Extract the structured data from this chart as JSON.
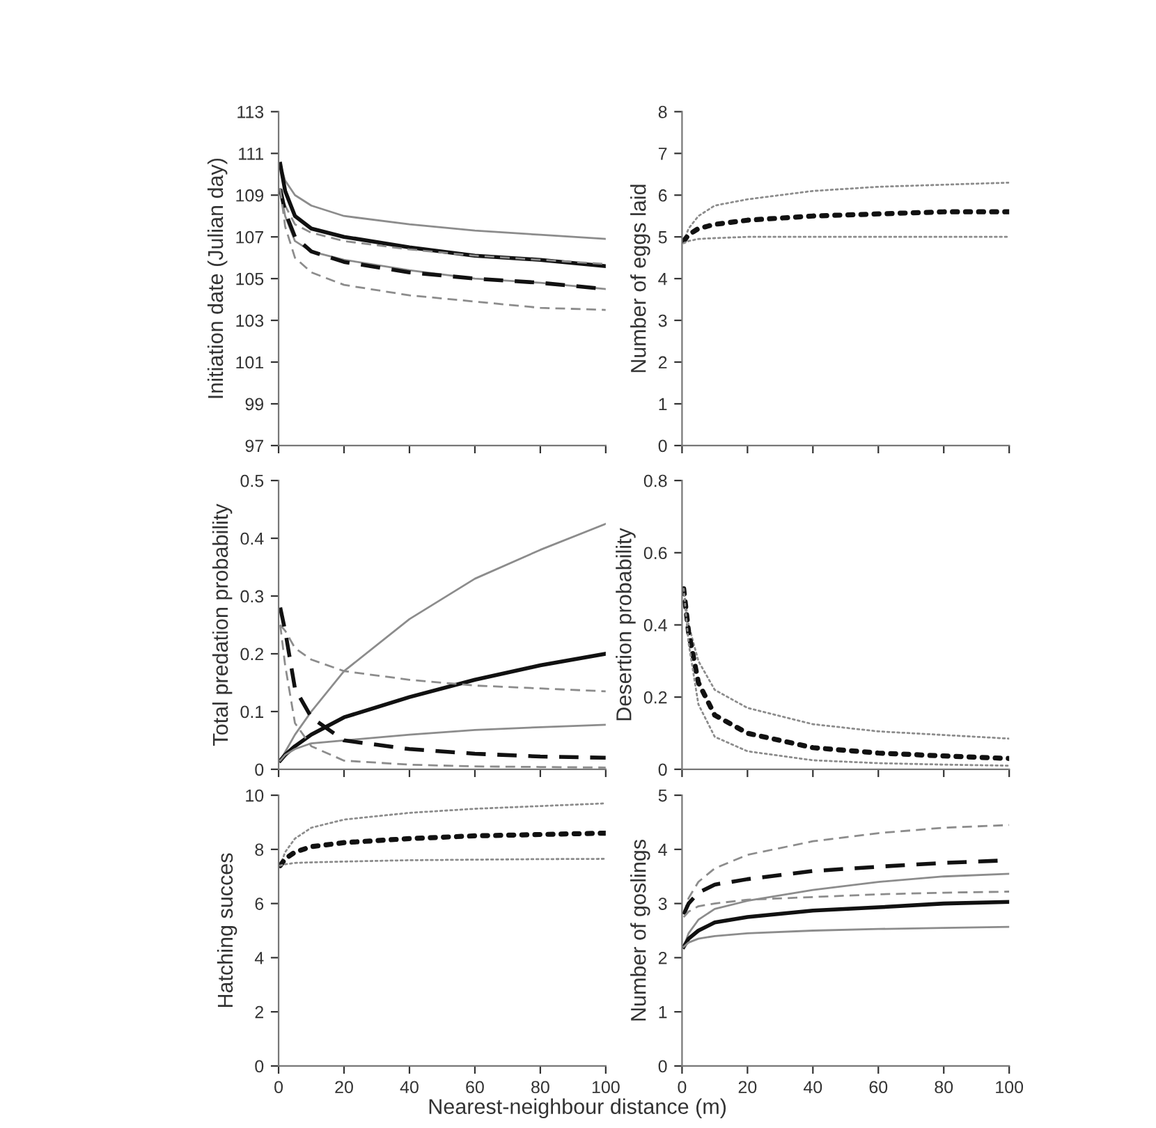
{
  "chart_data": [
    {
      "type": "line",
      "ylabel": "Initiation date (Julian day)",
      "xlim": [
        0,
        100
      ],
      "xticks": [
        0,
        20,
        40,
        60,
        80,
        100
      ],
      "ylim": [
        97,
        113
      ],
      "yticks": [
        97,
        99,
        101,
        103,
        105,
        107,
        109,
        111,
        113
      ],
      "tick_labels": "y",
      "grid": false,
      "legend": false,
      "x": [
        0.5,
        2,
        5,
        10,
        20,
        40,
        60,
        80,
        100
      ],
      "series": [
        {
          "color": "#8c8c8c",
          "line_style": "solid",
          "values": [
            110.5,
            109.7,
            109.0,
            108.5,
            108.0,
            107.6,
            107.3,
            107.1,
            106.9
          ]
        },
        {
          "color": "#111111",
          "line_style": "solid",
          "values": [
            110.5,
            109.2,
            108.0,
            107.4,
            107.0,
            106.5,
            106.1,
            105.9,
            105.6
          ]
        },
        {
          "color": "#8c8c8c",
          "line_style": "dashed",
          "values": [
            109.3,
            108.5,
            107.6,
            107.2,
            106.8,
            106.4,
            106.1,
            105.9,
            105.7
          ]
        },
        {
          "color": "#8c8c8c",
          "line_style": "solid",
          "values": [
            109.3,
            108.0,
            106.8,
            106.3,
            105.9,
            105.4,
            105.0,
            104.8,
            104.5
          ]
        },
        {
          "color": "#111111",
          "line_style": "dashed",
          "values": [
            109.3,
            108.2,
            107.0,
            106.3,
            105.8,
            105.3,
            105.0,
            104.8,
            104.5
          ]
        },
        {
          "color": "#8c8c8c",
          "line_style": "dashed",
          "values": [
            109.3,
            107.5,
            106.0,
            105.3,
            104.7,
            104.2,
            103.9,
            103.6,
            103.5
          ]
        }
      ]
    },
    {
      "type": "line",
      "ylabel": "Number of eggs laid",
      "xlim": [
        0,
        100
      ],
      "xticks": [
        0,
        20,
        40,
        60,
        80,
        100
      ],
      "ylim": [
        0,
        8
      ],
      "yticks": [
        0,
        1,
        2,
        3,
        4,
        5,
        6,
        7,
        8
      ],
      "tick_labels": "y",
      "grid": false,
      "legend": false,
      "x": [
        0.5,
        2,
        5,
        10,
        20,
        40,
        60,
        80,
        100
      ],
      "series": [
        {
          "color": "#8c8c8c",
          "line_style": "dotted",
          "values": [
            4.9,
            5.2,
            5.5,
            5.75,
            5.9,
            6.1,
            6.2,
            6.25,
            6.3
          ]
        },
        {
          "color": "#111111",
          "line_style": "dotted",
          "values": [
            4.9,
            5.05,
            5.2,
            5.3,
            5.4,
            5.5,
            5.55,
            5.6,
            5.6
          ]
        },
        {
          "color": "#8c8c8c",
          "line_style": "dotted",
          "values": [
            4.85,
            4.9,
            4.95,
            4.97,
            5.0,
            5.0,
            5.0,
            5.0,
            5.0
          ]
        }
      ]
    },
    {
      "type": "line",
      "ylabel": "Total predation probability",
      "xlim": [
        0,
        100
      ],
      "xticks": [
        0,
        20,
        40,
        60,
        80,
        100
      ],
      "ylim": [
        0,
        0.5
      ],
      "yticks": [
        0,
        0.1,
        0.2,
        0.3,
        0.4,
        0.5
      ],
      "tick_labels": "y",
      "grid": false,
      "legend": false,
      "x": [
        0.5,
        2,
        5,
        10,
        20,
        40,
        60,
        80,
        100
      ],
      "series": [
        {
          "color": "#8c8c8c",
          "line_style": "solid",
          "values": [
            0.015,
            0.03,
            0.06,
            0.1,
            0.17,
            0.26,
            0.33,
            0.38,
            0.425
          ]
        },
        {
          "color": "#111111",
          "line_style": "solid",
          "values": [
            0.015,
            0.025,
            0.04,
            0.06,
            0.09,
            0.125,
            0.155,
            0.18,
            0.2
          ]
        },
        {
          "color": "#8c8c8c",
          "line_style": "solid",
          "values": [
            0.015,
            0.025,
            0.035,
            0.045,
            0.05,
            0.06,
            0.068,
            0.073,
            0.077
          ]
        },
        {
          "color": "#8c8c8c",
          "line_style": "dashed",
          "values": [
            0.25,
            0.24,
            0.21,
            0.19,
            0.17,
            0.155,
            0.145,
            0.14,
            0.135
          ]
        },
        {
          "color": "#111111",
          "line_style": "dashed",
          "values": [
            0.28,
            0.24,
            0.14,
            0.09,
            0.05,
            0.035,
            0.027,
            0.022,
            0.02
          ]
        },
        {
          "color": "#8c8c8c",
          "line_style": "dashed",
          "values": [
            0.25,
            0.18,
            0.08,
            0.04,
            0.015,
            0.008,
            0.005,
            0.004,
            0.003
          ]
        }
      ]
    },
    {
      "type": "line",
      "ylabel": "Desertion probability",
      "xlim": [
        0,
        100
      ],
      "xticks": [
        0,
        20,
        40,
        60,
        80,
        100
      ],
      "ylim": [
        0,
        0.8
      ],
      "yticks": [
        0,
        0.2,
        0.4,
        0.6,
        0.8
      ],
      "tick_labels": "y",
      "grid": false,
      "legend": false,
      "x": [
        0.5,
        2,
        5,
        10,
        20,
        40,
        60,
        80,
        100
      ],
      "series": [
        {
          "color": "#8c8c8c",
          "line_style": "dotted",
          "values": [
            0.5,
            0.4,
            0.3,
            0.22,
            0.17,
            0.125,
            0.105,
            0.095,
            0.085
          ]
        },
        {
          "color": "#111111",
          "line_style": "dotted",
          "values": [
            0.5,
            0.38,
            0.24,
            0.15,
            0.1,
            0.06,
            0.045,
            0.037,
            0.03
          ]
        },
        {
          "color": "#8c8c8c",
          "line_style": "dotted",
          "values": [
            0.5,
            0.35,
            0.18,
            0.09,
            0.05,
            0.025,
            0.017,
            0.013,
            0.01
          ]
        }
      ]
    },
    {
      "type": "line",
      "ylabel": "Hatching succes",
      "xlim": [
        0,
        100
      ],
      "xticks": [
        0,
        20,
        40,
        60,
        80,
        100
      ],
      "ylim": [
        0,
        10
      ],
      "yticks": [
        0,
        2,
        4,
        6,
        8,
        10
      ],
      "grid": false,
      "legend": false,
      "x": [
        0.5,
        2,
        5,
        10,
        20,
        40,
        60,
        80,
        100
      ],
      "series": [
        {
          "color": "#8c8c8c",
          "line_style": "dotted",
          "values": [
            7.4,
            7.9,
            8.4,
            8.8,
            9.1,
            9.35,
            9.5,
            9.6,
            9.7
          ]
        },
        {
          "color": "#111111",
          "line_style": "dotted",
          "values": [
            7.4,
            7.65,
            7.9,
            8.1,
            8.25,
            8.4,
            8.5,
            8.55,
            8.6
          ]
        },
        {
          "color": "#8c8c8c",
          "line_style": "dotted",
          "values": [
            7.4,
            7.45,
            7.5,
            7.52,
            7.55,
            7.6,
            7.62,
            7.64,
            7.65
          ]
        }
      ]
    },
    {
      "type": "line",
      "ylabel": "Number of goslings",
      "xlabel": "Nearest-neighbour distance (m)",
      "xlim": [
        0,
        100
      ],
      "xticks": [
        0,
        20,
        40,
        60,
        80,
        100
      ],
      "ylim": [
        0,
        5
      ],
      "yticks": [
        0,
        1,
        2,
        3,
        4,
        5
      ],
      "grid": false,
      "legend": false,
      "x": [
        0.5,
        2,
        5,
        10,
        20,
        40,
        60,
        80,
        100
      ],
      "series": [
        {
          "color": "#8c8c8c",
          "line_style": "dashed",
          "values": [
            2.8,
            3.1,
            3.4,
            3.65,
            3.9,
            4.15,
            4.3,
            4.4,
            4.45
          ]
        },
        {
          "color": "#111111",
          "line_style": "dashed",
          "values": [
            2.8,
            3.0,
            3.2,
            3.35,
            3.45,
            3.6,
            3.68,
            3.75,
            3.8
          ]
        },
        {
          "color": "#8c8c8c",
          "line_style": "dashed",
          "values": [
            2.75,
            2.85,
            2.95,
            3.0,
            3.07,
            3.12,
            3.17,
            3.2,
            3.22
          ]
        },
        {
          "color": "#8c8c8c",
          "line_style": "solid",
          "values": [
            2.2,
            2.45,
            2.7,
            2.9,
            3.05,
            3.25,
            3.4,
            3.5,
            3.55
          ]
        },
        {
          "color": "#111111",
          "line_style": "solid",
          "values": [
            2.2,
            2.35,
            2.5,
            2.65,
            2.75,
            2.87,
            2.93,
            3.0,
            3.03
          ]
        },
        {
          "color": "#8c8c8c",
          "line_style": "solid",
          "values": [
            2.2,
            2.28,
            2.35,
            2.4,
            2.45,
            2.5,
            2.53,
            2.55,
            2.57
          ]
        }
      ]
    }
  ]
}
